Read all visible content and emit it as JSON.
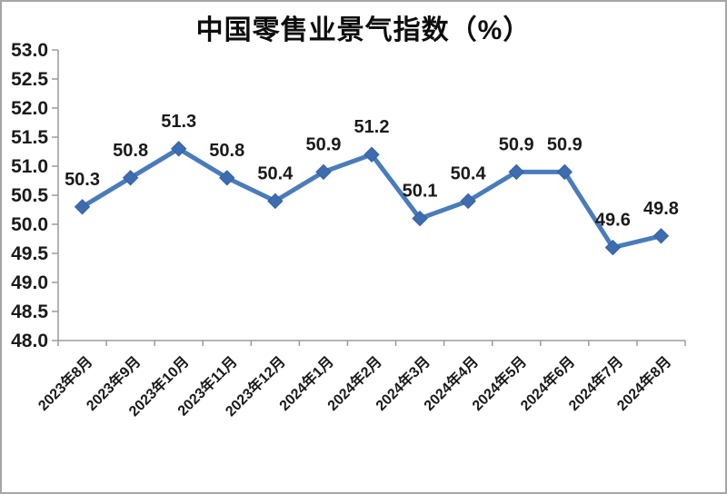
{
  "chart_data": {
    "type": "line",
    "title": "中国零售业景气指数（%）",
    "categories": [
      "2023年8月",
      "2023年9月",
      "2023年10月",
      "2023年11月",
      "2023年12月",
      "2024年1月",
      "2024年2月",
      "2024年3月",
      "2024年4月",
      "2024年5月",
      "2024年6月",
      "2024年7月",
      "2024年8月"
    ],
    "values": [
      50.3,
      50.8,
      51.3,
      50.8,
      50.4,
      50.9,
      51.2,
      50.1,
      50.4,
      50.9,
      50.9,
      49.6,
      49.8
    ],
    "data_labels_shown": true,
    "ylim": [
      48.0,
      53.0
    ],
    "ytick_step": 0.5,
    "grid": false,
    "legend_position": "none",
    "marker_shape": "diamond",
    "colors": {
      "line": "#4A7CBA",
      "marker_fill": "#3D6CB0",
      "marker_stroke": "#35609F",
      "axis": "#9B9B9B",
      "label_text": "#1A1A1A",
      "title_text": "#0D0D0D",
      "background": "#FFFFFF",
      "frame_border": "#A6A6A6"
    }
  }
}
